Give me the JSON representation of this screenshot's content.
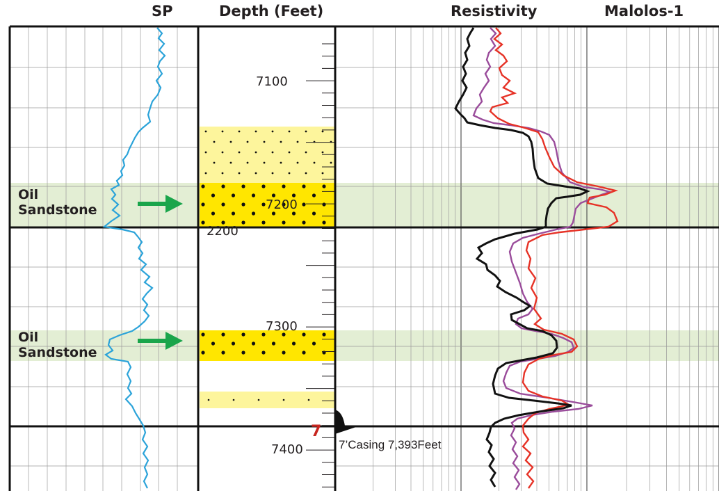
{
  "headers": {
    "sp": "SP",
    "depth": "Depth (Feet)",
    "resistivity": "Resistivity",
    "well": "Malolos-1"
  },
  "depth_labels": [
    "7100",
    "7200",
    "7300",
    "7400"
  ],
  "extra_label": "2200",
  "zones": [
    {
      "line1": "Oil",
      "line2": "Sandstone"
    },
    {
      "line1": "Oil",
      "line2": "Sandstone"
    }
  ],
  "casing": {
    "marker": "7",
    "label": "7’Casing 7,393Feet"
  },
  "colors": {
    "sp_curve": "#2ba3d9",
    "res_black": "#111111",
    "res_purple": "#9a4c9b",
    "res_red": "#e63226",
    "zone_band": "#e3eed4",
    "sand_light": "#fdf59c",
    "sand_dark": "#ffe600",
    "arrow": "#1aa54b",
    "grid": "#9a9a9a",
    "casing_red": "#c7261f"
  }
}
